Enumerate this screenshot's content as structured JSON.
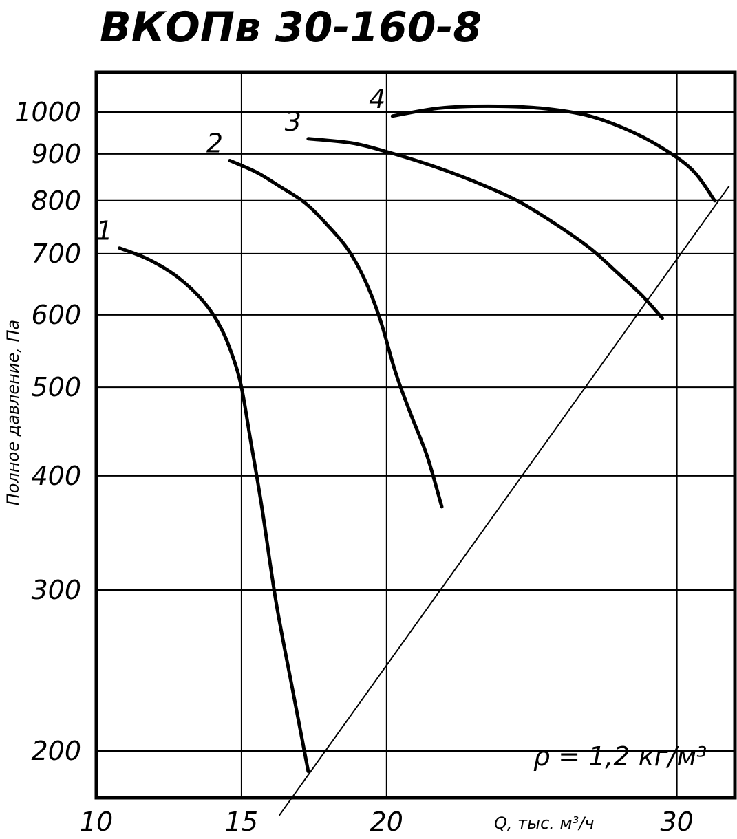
{
  "chart_data": {
    "type": "line",
    "title": "ВКОПв 30-160-8",
    "ylabel": "Полное давление, Па",
    "xlabel": "Q, тыс. м³/ч",
    "annotation": "ρ = 1,2 кг/м³",
    "y_scale": "log",
    "xlim": [
      10,
      32
    ],
    "ylim": [
      180,
      1100
    ],
    "x_ticks": [
      "10",
      "15",
      "20",
      "30"
    ],
    "x_tick_values": [
      10,
      15,
      20,
      30
    ],
    "y_ticks": [
      "200",
      "300",
      "400",
      "500",
      "600",
      "700",
      "800",
      "900",
      "1000"
    ],
    "y_tick_values": [
      200,
      300,
      400,
      500,
      600,
      700,
      800,
      900,
      1000
    ],
    "grid": true,
    "series": [
      {
        "name": "1",
        "x": [
          10.8,
          11.8,
          12.8,
          13.7,
          14.3,
          14.7,
          15.0,
          15.3,
          15.7,
          16.2,
          16.8,
          17.3
        ],
        "y": [
          710,
          690,
          660,
          620,
          580,
          540,
          500,
          440,
          370,
          290,
          230,
          190
        ]
      },
      {
        "name": "2",
        "x": [
          14.6,
          15.5,
          16.3,
          17.2,
          18.0,
          18.7,
          19.3,
          19.8,
          20.3,
          20.8,
          21.4,
          21.9
        ],
        "y": [
          885,
          860,
          830,
          795,
          750,
          705,
          650,
          590,
          520,
          470,
          420,
          370
        ]
      },
      {
        "name": "3",
        "x": [
          17.3,
          18.8,
          20.0,
          21.5,
          23.0,
          24.5,
          25.8,
          27.0,
          28.0,
          28.8,
          29.5
        ],
        "y": [
          935,
          925,
          905,
          875,
          840,
          800,
          755,
          710,
          665,
          630,
          595
        ]
      },
      {
        "name": "4",
        "x": [
          20.2,
          21.8,
          23.5,
          25.3,
          27.0,
          28.5,
          29.7,
          30.6,
          31.3
        ],
        "y": [
          990,
          1010,
          1015,
          1010,
          990,
          950,
          905,
          860,
          800
        ]
      }
    ],
    "limit_line": {
      "x": [
        16.3,
        31.8
      ],
      "y": [
        170,
        830
      ]
    }
  }
}
